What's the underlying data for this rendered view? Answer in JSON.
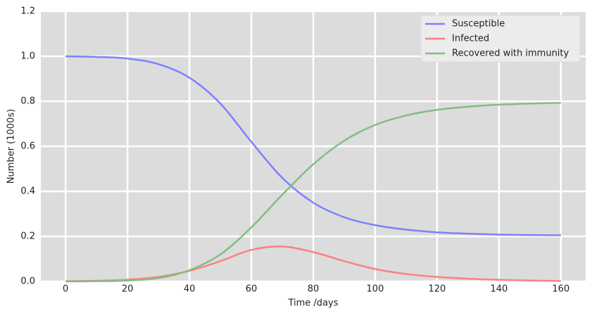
{
  "chart_data": {
    "type": "line",
    "x": [
      0,
      10,
      20,
      30,
      40,
      50,
      60,
      70,
      80,
      90,
      100,
      110,
      120,
      130,
      140,
      150,
      160
    ],
    "series": [
      {
        "name": "Susceptible",
        "color": "#7f7fff",
        "values": [
          1.0,
          0.997,
          0.99,
          0.965,
          0.905,
          0.79,
          0.62,
          0.46,
          0.35,
          0.285,
          0.25,
          0.23,
          0.218,
          0.212,
          0.208,
          0.206,
          0.205
        ]
      },
      {
        "name": "Infected",
        "color": "#ff7f7f",
        "values": [
          0.001,
          0.003,
          0.008,
          0.02,
          0.047,
          0.09,
          0.14,
          0.155,
          0.13,
          0.09,
          0.055,
          0.033,
          0.02,
          0.012,
          0.007,
          0.004,
          0.002
        ]
      },
      {
        "name": "Recovered with immunity",
        "color": "#7fbf7f",
        "values": [
          0,
          0.001,
          0.004,
          0.015,
          0.05,
          0.12,
          0.24,
          0.385,
          0.52,
          0.625,
          0.695,
          0.737,
          0.762,
          0.776,
          0.785,
          0.79,
          0.793
        ]
      }
    ],
    "x_label": "Time /days",
    "y_label": "Number (1000s)",
    "xlim": [
      -8,
      168
    ],
    "ylim": [
      0,
      1.2
    ],
    "xticks": [
      0,
      20,
      40,
      60,
      80,
      100,
      120,
      140,
      160
    ],
    "yticks": [
      {
        "value": 0,
        "label": "0.0"
      },
      0.2,
      0.4,
      0.6,
      0.8,
      {
        "value": 1,
        "label": "1.0"
      },
      1.2
    ],
    "grid": true,
    "legend": "upper right"
  }
}
